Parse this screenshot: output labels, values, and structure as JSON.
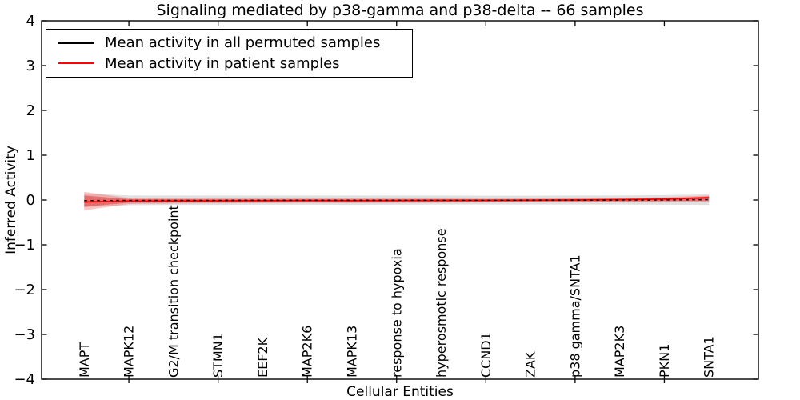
{
  "figure": {
    "title": "Signaling mediated by p38-gamma and p38-delta -- 66 samples"
  },
  "axes": {
    "x_label": "Cellular Entities",
    "y_label": "Inferred Activity",
    "y_ticks": [
      4,
      3,
      2,
      1,
      0,
      -1,
      -2,
      -3,
      -4
    ],
    "ylim": [
      -4,
      4
    ]
  },
  "legend": {
    "position": "upper left",
    "items": [
      {
        "label": "Mean activity in all permuted samples",
        "color": "#000000"
      },
      {
        "label": "Mean activity in patient samples",
        "color": "#ff0000"
      }
    ]
  },
  "chart_data": {
    "type": "line",
    "title": "Signaling mediated by p38-gamma and p38-delta -- 66 samples",
    "xlabel": "Cellular Entities",
    "ylabel": "Inferred Activity",
    "ylim": [
      -4,
      4
    ],
    "grid": false,
    "legend_position": "upper left",
    "categories": [
      "MAPT",
      "MAPK12",
      "G2/M transition checkpoint",
      "STMN1",
      "EEF2K",
      "MAP2K6",
      "MAPK13",
      "response to hypoxia",
      "hyperosmotic response",
      "CCND1",
      "ZAK",
      "p38 gamma/SNTA1",
      "MAP2K3",
      "PKN1",
      "SNTA1"
    ],
    "x_ticks_at": [
      1,
      3,
      5,
      7,
      9,
      11,
      13
    ],
    "series": [
      {
        "name": "Mean activity in all permuted samples",
        "color": "#000000",
        "line_style": "dashed",
        "values": [
          -0.012,
          -0.008,
          -0.007,
          -0.007,
          -0.006,
          -0.006,
          -0.006,
          -0.005,
          -0.005,
          -0.005,
          -0.004,
          -0.003,
          -0.002,
          0.0,
          0.008
        ]
      },
      {
        "name": "Mean activity in patient samples",
        "color": "#ff0000",
        "line_style": "solid",
        "values": [
          -0.045,
          -0.025,
          -0.02,
          -0.018,
          -0.015,
          -0.012,
          -0.015,
          -0.012,
          -0.01,
          -0.008,
          -0.005,
          0.0,
          0.008,
          0.02,
          0.05
        ]
      }
    ],
    "bands": [
      {
        "name": "permuted-samples-spread",
        "color": "#999999",
        "opacity": 0.3,
        "hi": [
          0.15,
          0.1,
          0.1,
          0.1,
          0.1,
          0.1,
          0.1,
          0.1,
          0.1,
          0.095,
          0.095,
          0.1,
          0.1,
          0.11,
          0.125
        ],
        "lo": [
          -0.16,
          -0.115,
          -0.11,
          -0.11,
          -0.105,
          -0.105,
          -0.11,
          -0.105,
          -0.1,
          -0.1,
          -0.1,
          -0.1,
          -0.1,
          -0.105,
          -0.11
        ]
      },
      {
        "name": "patient-samples-spread-outer",
        "color": "#ff4040",
        "opacity": 0.3,
        "hi": [
          0.18,
          0.045,
          0.04,
          0.038,
          0.035,
          0.035,
          0.04,
          0.035,
          0.035,
          0.032,
          0.035,
          0.045,
          0.05,
          0.06,
          0.1
        ],
        "lo": [
          -0.23,
          -0.09,
          -0.08,
          -0.075,
          -0.07,
          -0.065,
          -0.07,
          -0.065,
          -0.06,
          -0.055,
          -0.05,
          -0.05,
          -0.05,
          -0.045,
          -0.04
        ]
      },
      {
        "name": "patient-samples-spread-inner",
        "color": "#e03030",
        "opacity": 0.5,
        "hi": [
          0.1,
          0.02,
          0.018,
          0.016,
          0.015,
          0.015,
          0.018,
          0.015,
          0.015,
          0.014,
          0.016,
          0.022,
          0.028,
          0.035,
          0.08
        ],
        "lo": [
          -0.15,
          -0.06,
          -0.055,
          -0.05,
          -0.048,
          -0.045,
          -0.05,
          -0.045,
          -0.042,
          -0.038,
          -0.035,
          -0.032,
          -0.03,
          -0.025,
          -0.02
        ]
      }
    ]
  }
}
